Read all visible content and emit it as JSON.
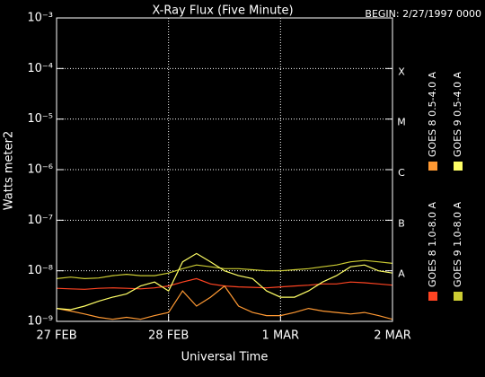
{
  "chart_data": {
    "type": "line",
    "title": "X-Ray Flux (Five Minute)",
    "subtitle": "BEGIN: 2/27/1997 0000",
    "x_label": "Universal Time",
    "y_label": "Watts meter2",
    "log_y": true,
    "grid": true,
    "x": [
      "1997-02-27T00:00",
      "1997-02-27T03:00",
      "1997-02-27T06:00",
      "1997-02-27T09:00",
      "1997-02-27T12:00",
      "1997-02-27T15:00",
      "1997-02-27T18:00",
      "1997-02-27T21:00",
      "1997-02-28T00:00",
      "1997-02-28T03:00",
      "1997-02-28T06:00",
      "1997-02-28T09:00",
      "1997-02-28T12:00",
      "1997-02-28T15:00",
      "1997-02-28T18:00",
      "1997-02-28T21:00",
      "1997-03-01T00:00",
      "1997-03-01T03:00",
      "1997-03-01T06:00",
      "1997-03-01T09:00",
      "1997-03-01T12:00",
      "1997-03-01T15:00",
      "1997-03-01T18:00",
      "1997-03-01T21:00",
      "1997-03-02T00:00"
    ],
    "xlim": [
      "1997-02-27T00:00",
      "1997-03-02T00:00"
    ],
    "xticks": [
      {
        "value": "1997-02-27T00:00",
        "label": "27 FEB"
      },
      {
        "value": "1997-02-28T00:00",
        "label": "28 FEB"
      },
      {
        "value": "1997-03-01T00:00",
        "label": "1 MAR"
      },
      {
        "value": "1997-03-02T00:00",
        "label": "2 MAR"
      }
    ],
    "ylim": [
      1e-09,
      0.001
    ],
    "yticks": [
      {
        "value": 1e-09,
        "label": "10⁻⁹"
      },
      {
        "value": 1e-08,
        "label": "10⁻⁸"
      },
      {
        "value": 1e-07,
        "label": "10⁻⁷"
      },
      {
        "value": 1e-06,
        "label": "10⁻⁶"
      },
      {
        "value": 1e-05,
        "label": "10⁻⁵"
      },
      {
        "value": 0.0001,
        "label": "10⁻⁴"
      },
      {
        "value": 0.001,
        "label": "10⁻³"
      }
    ],
    "flare_classes": [
      {
        "value": 1e-08,
        "label": "A"
      },
      {
        "value": 1e-07,
        "label": "B"
      },
      {
        "value": 1e-06,
        "label": "C"
      },
      {
        "value": 1e-05,
        "label": "M"
      },
      {
        "value": 0.0001,
        "label": "X"
      }
    ],
    "series": [
      {
        "name": "GOES 8 1.0-8.0 A",
        "color": "#ff4422",
        "values": [
          4.5e-09,
          4.4e-09,
          4.3e-09,
          4.5e-09,
          4.6e-09,
          4.5e-09,
          4.4e-09,
          4.6e-09,
          5e-09,
          6e-09,
          7e-09,
          5.5e-09,
          5e-09,
          4.8e-09,
          4.7e-09,
          4.6e-09,
          4.8e-09,
          5e-09,
          5.2e-09,
          5.5e-09,
          5.5e-09,
          6e-09,
          5.8e-09,
          5.5e-09,
          5.2e-09
        ]
      },
      {
        "name": "GOES 8 0.5-4.0 A",
        "color": "#ff9933",
        "values": [
          1.8e-09,
          1.6e-09,
          1.4e-09,
          1.2e-09,
          1.1e-09,
          1.2e-09,
          1.1e-09,
          1.3e-09,
          1.5e-09,
          4e-09,
          2e-09,
          3e-09,
          5e-09,
          2e-09,
          1.5e-09,
          1.3e-09,
          1.3e-09,
          1.5e-09,
          1.8e-09,
          1.6e-09,
          1.5e-09,
          1.4e-09,
          1.5e-09,
          1.3e-09,
          1.1e-09
        ]
      },
      {
        "name": "GOES 9 1.0-8.0 A",
        "color": "#cccc33",
        "values": [
          7e-09,
          7.5e-09,
          7e-09,
          7.2e-09,
          8e-09,
          8.5e-09,
          8e-09,
          8e-09,
          9e-09,
          1.1e-08,
          1.3e-08,
          1.2e-08,
          1.1e-08,
          1.1e-08,
          1.05e-08,
          1e-08,
          1e-08,
          1.05e-08,
          1.1e-08,
          1.2e-08,
          1.3e-08,
          1.5e-08,
          1.6e-08,
          1.5e-08,
          1.4e-08
        ]
      },
      {
        "name": "GOES 9 0.5-4.0 A",
        "color": "#ffff66",
        "values": [
          1.8e-09,
          1.7e-09,
          2e-09,
          2.5e-09,
          3e-09,
          3.5e-09,
          5e-09,
          6e-09,
          4e-09,
          1.5e-08,
          2.2e-08,
          1.5e-08,
          1e-08,
          8e-09,
          7e-09,
          4e-09,
          3e-09,
          3e-09,
          4e-09,
          6e-09,
          8e-09,
          1.2e-08,
          1.3e-08,
          1e-08,
          9e-09
        ]
      }
    ]
  }
}
